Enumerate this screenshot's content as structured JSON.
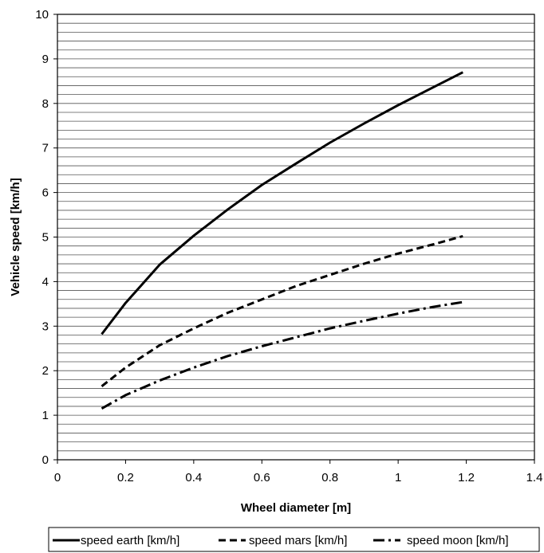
{
  "chart_data": {
    "type": "line",
    "title": "",
    "xlabel": "Wheel diameter [m]",
    "ylabel": "Vehicle speed [km/h]",
    "xlim": [
      0,
      1.4
    ],
    "ylim": [
      0,
      10
    ],
    "x_ticks": [
      "0",
      "0.2",
      "0.4",
      "0.6",
      "0.8",
      "1",
      "1.2",
      "1.4"
    ],
    "y_ticks": [
      "0",
      "1",
      "2",
      "3",
      "4",
      "5",
      "6",
      "7",
      "8",
      "9",
      "10"
    ],
    "grid": "horizontal minor lines every 0.2",
    "legend_position": "bottom",
    "series": [
      {
        "name": "speed earth [km/h]",
        "style": "solid",
        "x": [
          0.13,
          0.2,
          0.3,
          0.4,
          0.5,
          0.6,
          0.7,
          0.8,
          0.9,
          1.0,
          1.1,
          1.19
        ],
        "y": [
          2.82,
          3.52,
          4.38,
          5.03,
          5.62,
          6.17,
          6.65,
          7.12,
          7.55,
          7.96,
          8.35,
          8.7
        ]
      },
      {
        "name": "speed mars [km/h]",
        "style": "dashed",
        "x": [
          0.13,
          0.2,
          0.3,
          0.4,
          0.5,
          0.6,
          0.7,
          0.8,
          0.9,
          1.0,
          1.1,
          1.19
        ],
        "y": [
          1.65,
          2.07,
          2.57,
          2.95,
          3.3,
          3.6,
          3.9,
          4.15,
          4.4,
          4.63,
          4.83,
          5.02
        ]
      },
      {
        "name": "speed moon [km/h]",
        "style": "dash-dot",
        "x": [
          0.13,
          0.2,
          0.3,
          0.4,
          0.5,
          0.6,
          0.7,
          0.8,
          0.9,
          1.0,
          1.1,
          1.19
        ],
        "y": [
          1.15,
          1.45,
          1.78,
          2.07,
          2.33,
          2.55,
          2.75,
          2.95,
          3.12,
          3.28,
          3.43,
          3.54
        ]
      }
    ]
  }
}
